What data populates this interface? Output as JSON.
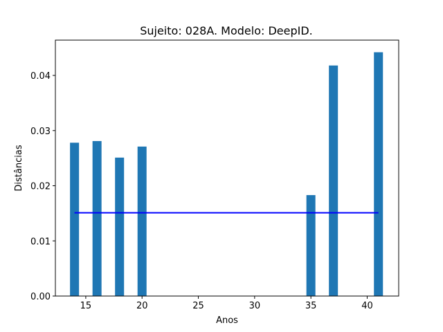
{
  "chart_data": {
    "type": "bar",
    "title": "Sujeito: 028A. Modelo: DeepID.",
    "xlabel": "Anos",
    "ylabel": "Distâncias",
    "xlim": [
      12.3,
      42.8
    ],
    "ylim": [
      0,
      0.0464
    ],
    "xticks": [
      15,
      20,
      25,
      30,
      35,
      40
    ],
    "yticks": [
      0.0,
      0.01,
      0.02,
      0.03,
      0.04
    ],
    "ytick_labels": [
      "0.00",
      "0.01",
      "0.02",
      "0.03",
      "0.04"
    ],
    "bar_width": 0.8,
    "bar_color": "#1f77b4",
    "x": [
      14,
      16,
      18,
      20,
      35,
      37,
      41
    ],
    "values": [
      0.0278,
      0.0281,
      0.0251,
      0.0271,
      0.0183,
      0.0418,
      0.0442
    ],
    "reference_line": {
      "x": [
        14,
        41
      ],
      "y": 0.0151,
      "color": "#0000ff"
    },
    "grid": false,
    "legend": "none"
  }
}
